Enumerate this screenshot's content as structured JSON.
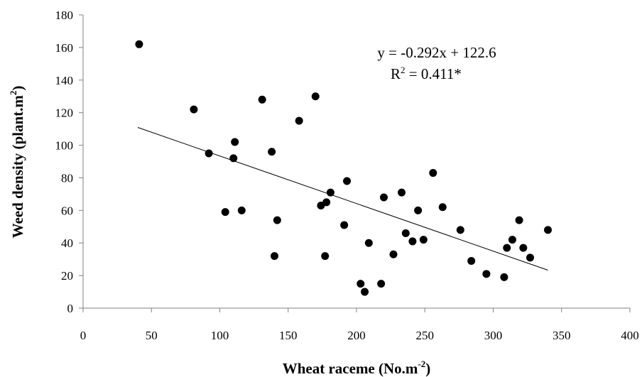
{
  "chart_data": {
    "type": "scatter",
    "xlabel": {
      "text": "Wheat raceme (No.m",
      "sup": "-2",
      "tail": ")"
    },
    "ylabel": {
      "text": "Weed density (plant.m",
      "sup": "2",
      "tail": ")"
    },
    "xlim": [
      0,
      400
    ],
    "ylim": [
      0,
      180
    ],
    "x_ticks": [
      "0",
      "50",
      "100",
      "150",
      "200",
      "250",
      "300",
      "350",
      "400"
    ],
    "y_ticks": [
      "0",
      "20",
      "40",
      "60",
      "80",
      "100",
      "120",
      "140",
      "160",
      "180"
    ],
    "grid": false,
    "legend": "none",
    "marker_color": "#000000",
    "series": [
      {
        "points": [
          [
            41,
            162
          ],
          [
            81,
            122
          ],
          [
            92,
            95
          ],
          [
            104,
            59
          ],
          [
            110,
            92
          ],
          [
            111,
            102
          ],
          [
            116,
            60
          ],
          [
            131,
            128
          ],
          [
            138,
            96
          ],
          [
            140,
            32
          ],
          [
            142,
            54
          ],
          [
            158,
            115
          ],
          [
            170,
            130
          ],
          [
            174,
            63
          ],
          [
            177,
            32
          ],
          [
            178,
            65
          ],
          [
            181,
            71
          ],
          [
            191,
            51
          ],
          [
            193,
            78
          ],
          [
            203,
            15
          ],
          [
            206,
            10
          ],
          [
            209,
            40
          ],
          [
            218,
            15
          ],
          [
            220,
            68
          ],
          [
            227,
            33
          ],
          [
            233,
            71
          ],
          [
            236,
            46
          ],
          [
            241,
            41
          ],
          [
            245,
            60
          ],
          [
            249,
            42
          ],
          [
            256,
            83
          ],
          [
            263,
            62
          ],
          [
            276,
            48
          ],
          [
            284,
            29
          ],
          [
            295,
            21
          ],
          [
            308,
            19
          ],
          [
            310,
            37
          ],
          [
            314,
            42
          ],
          [
            319,
            54
          ],
          [
            322,
            37
          ],
          [
            327,
            31
          ],
          [
            340,
            48
          ]
        ]
      }
    ],
    "trendline": {
      "slope": -0.292,
      "intercept": 122.6,
      "x_range": [
        40,
        340
      ]
    },
    "annotations": {
      "equation": "y = -0.292x + 122.6",
      "r2_prefix": "R",
      "r2_sup": "2",
      "r2_value": " = 0.411*"
    }
  }
}
